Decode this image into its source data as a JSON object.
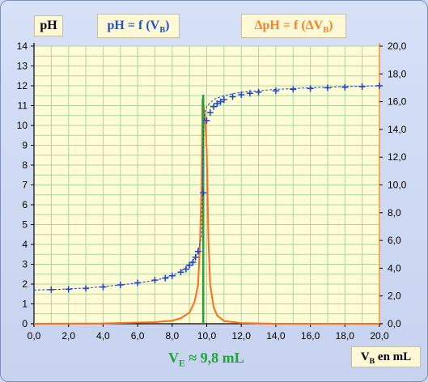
{
  "labels": {
    "ph_axis": "pH",
    "title_ph_main": "pH = f (V",
    "title_ph_sub": "B",
    "title_ph_end": ")",
    "title_dph_main": "ΔpH = f (ΔV",
    "title_dph_sub": "B",
    "title_dph_end": ")",
    "ve_main": "V",
    "ve_sub": "E",
    "ve_end": " ≈ 9,8 mL",
    "vb_main": "V",
    "vb_sub": "B",
    "vb_end": " en mL"
  },
  "colors": {
    "plot_bg": "#fffcd6",
    "grid": "#a8d8a0",
    "ph_series": "#1f3fd6",
    "dph_series": "#ff6f1a",
    "equivalence": "#22a33a",
    "right_axis": "#ff9a2a"
  },
  "chart_data": {
    "type": "line",
    "xlim": [
      0,
      20
    ],
    "ylim_left": [
      0,
      14
    ],
    "ylim_right": [
      0,
      20
    ],
    "x_ticks": [
      "0,0",
      "2,0",
      "4,0",
      "6,0",
      "8,0",
      "10,0",
      "12,0",
      "14,0",
      "16,0",
      "18,0",
      "20,0"
    ],
    "y_left_ticks": [
      "0",
      "1",
      "2",
      "3",
      "4",
      "5",
      "6",
      "7",
      "8",
      "9",
      "10",
      "11",
      "12",
      "13",
      "14"
    ],
    "y_right_ticks": [
      "0,0",
      "2,0",
      "4,0",
      "6,0",
      "8,0",
      "10,0",
      "12,0",
      "14,0",
      "16,0",
      "18,0",
      "20,0"
    ],
    "grid": true,
    "equivalence_x": 9.8,
    "series": [
      {
        "axis": "left",
        "style": "dashed line with + markers",
        "x": [
          0.0,
          1.0,
          2.0,
          3.0,
          4.0,
          5.0,
          6.0,
          7.0,
          8.0,
          8.5,
          9.0,
          9.3,
          9.5,
          9.7,
          9.75,
          9.8,
          9.85,
          9.9,
          10.0,
          10.2,
          10.5,
          11.0,
          11.5,
          12.0,
          13.0,
          14.0,
          15.0,
          16.0,
          17.0,
          18.0,
          19.0,
          20.0
        ],
        "y": [
          1.7,
          1.72,
          1.76,
          1.8,
          1.87,
          1.96,
          2.06,
          2.18,
          2.42,
          2.65,
          2.95,
          3.3,
          3.65,
          4.4,
          6.6,
          9.3,
          10.25,
          10.65,
          10.95,
          11.15,
          11.35,
          11.5,
          11.6,
          11.67,
          11.75,
          11.82,
          11.86,
          11.9,
          11.93,
          11.96,
          11.98,
          12.0
        ],
        "markers_x": [
          1.0,
          2.0,
          3.0,
          4.0,
          5.0,
          6.0,
          7.0,
          7.6,
          8.0,
          8.5,
          8.8,
          9.0,
          9.2,
          9.35,
          9.5,
          9.8,
          10.0,
          10.2,
          10.4,
          10.6,
          10.8,
          11.0,
          11.5,
          12.0,
          12.5,
          13.0,
          14.0,
          15.0,
          16.0,
          17.0,
          18.0,
          19.0,
          20.0
        ],
        "markers_y": [
          1.72,
          1.74,
          1.78,
          1.85,
          1.96,
          2.06,
          2.2,
          2.3,
          2.42,
          2.6,
          2.75,
          2.95,
          3.1,
          3.35,
          3.65,
          6.6,
          10.25,
          10.65,
          10.95,
          11.1,
          11.2,
          11.3,
          11.45,
          11.55,
          11.62,
          11.68,
          11.75,
          11.82,
          11.86,
          11.9,
          11.93,
          11.96,
          12.0
        ]
      },
      {
        "axis": "right",
        "style": "solid line",
        "x": [
          0.0,
          4.0,
          7.0,
          8.0,
          8.5,
          9.0,
          9.3,
          9.5,
          9.6,
          9.7,
          9.75,
          9.8,
          9.85,
          9.9,
          10.0,
          10.1,
          10.2,
          10.4,
          10.6,
          11.0,
          12.0,
          14.0,
          20.0
        ],
        "y": [
          0.0,
          0.02,
          0.12,
          0.22,
          0.4,
          0.8,
          1.6,
          2.8,
          5.5,
          10.0,
          16.2,
          16.0,
          15.4,
          15.0,
          12.5,
          6.0,
          2.8,
          1.2,
          0.6,
          0.2,
          0.05,
          0.0,
          0.0
        ]
      }
    ]
  }
}
